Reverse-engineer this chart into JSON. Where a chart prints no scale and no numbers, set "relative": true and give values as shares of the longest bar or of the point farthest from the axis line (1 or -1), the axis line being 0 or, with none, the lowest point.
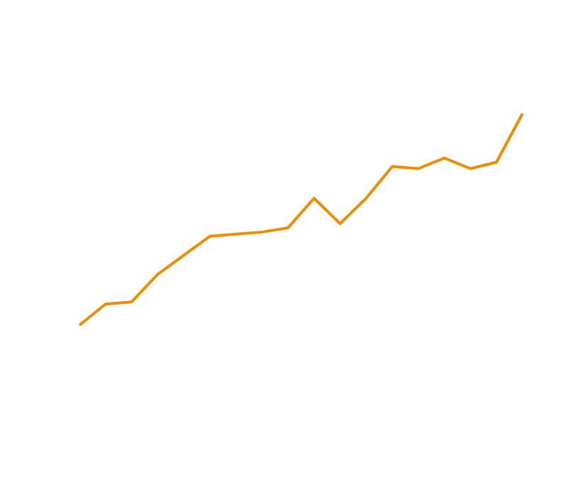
{
  "chart_data": {
    "type": "line",
    "relative": true,
    "categories": [
      null,
      null,
      null,
      null,
      null,
      null,
      null,
      null,
      null,
      null,
      null,
      null,
      null,
      null,
      null,
      null,
      null,
      null
    ],
    "series": [
      {
        "color": "#f08c00",
        "values": [
          0,
          0.1,
          0.11,
          0.24,
          0.33,
          0.42,
          0.43,
          0.44,
          0.46,
          0.6,
          0.48,
          0.6,
          0.75,
          0.74,
          0.79,
          0.74,
          0.77,
          1
        ]
      }
    ]
  }
}
